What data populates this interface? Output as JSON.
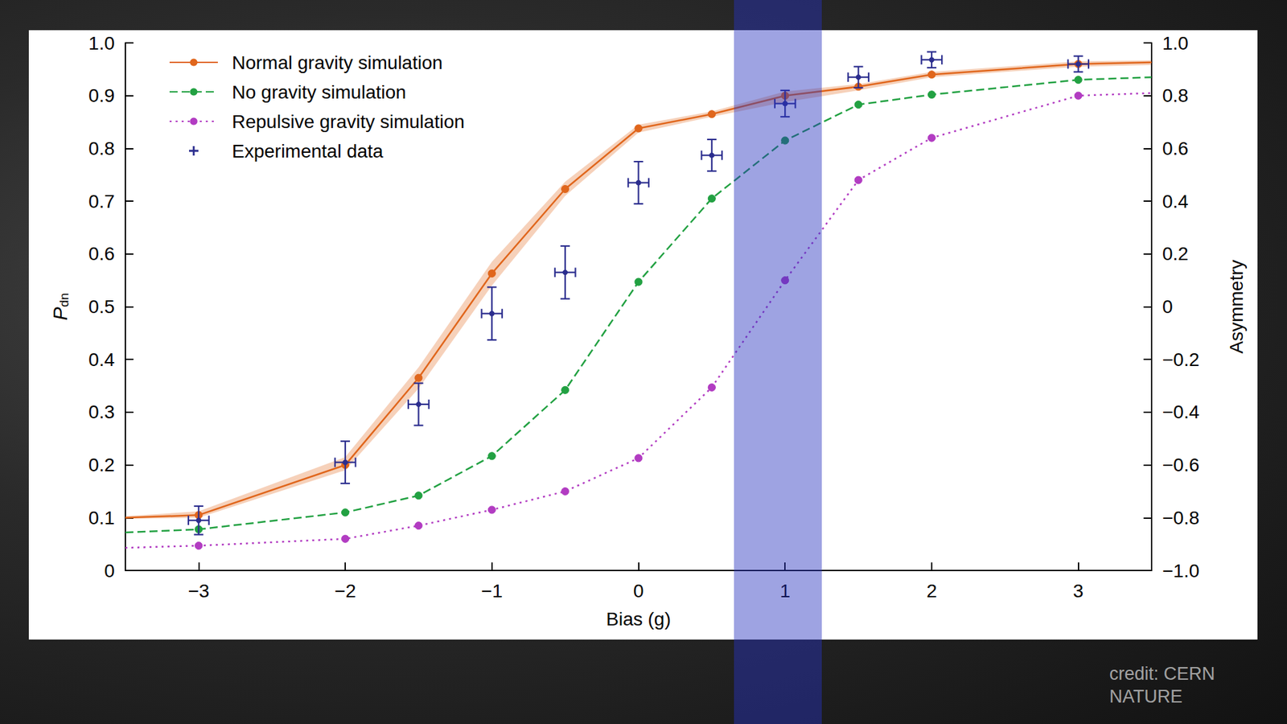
{
  "chart_data": {
    "type": "line",
    "xlabel": "Bias (g)",
    "ylabel": "P",
    "ylabel_subscript": "dn",
    "y2label": "Asymmetry",
    "xlim": [
      -3.5,
      3.5
    ],
    "xticks": [
      {
        "value": -3,
        "label": "−3"
      },
      {
        "value": -2,
        "label": "−2"
      },
      {
        "value": -1,
        "label": "−1"
      },
      0,
      1,
      2,
      3
    ],
    "ylim": [
      0,
      1
    ],
    "yticks": [
      0,
      0.1,
      0.2,
      0.3,
      0.4,
      0.5,
      0.6,
      0.7,
      0.8,
      0.9,
      {
        "value": 1,
        "label": "1.0"
      }
    ],
    "y2lim": [
      -1,
      1
    ],
    "y2ticks": [
      {
        "value": -1,
        "label": "−1.0"
      },
      {
        "value": -0.8,
        "label": "−0.8"
      },
      {
        "value": -0.6,
        "label": "−0.6"
      },
      {
        "value": -0.4,
        "label": "−0.4"
      },
      {
        "value": -0.2,
        "label": "−0.2"
      },
      0,
      0.2,
      0.4,
      0.6,
      0.8,
      {
        "value": 1,
        "label": "1.0"
      }
    ],
    "grid": false,
    "legend": "top-left",
    "highlight_x": [
      0.65,
      1.25
    ],
    "credit": [
      "credit: CERN",
      "NATURE"
    ],
    "series": [
      {
        "name": "Normal gravity simulation",
        "type": "line",
        "color": "#e0661c",
        "marker": "circle",
        "line_style": "solid",
        "x": [
          -3.5,
          -3,
          -2,
          -1.5,
          -1,
          -0.5,
          0,
          0.5,
          1,
          1.5,
          2,
          3,
          3.5
        ],
        "values": [
          0.1,
          0.105,
          0.2,
          0.365,
          0.563,
          0.723,
          0.838,
          0.865,
          0.9,
          0.917,
          0.94,
          0.96,
          0.963
        ],
        "band_low": [
          0.098,
          0.1,
          0.19,
          0.345,
          0.54,
          0.71,
          0.83,
          0.86,
          0.888,
          0.91,
          0.935,
          0.955,
          0.958
        ],
        "band_high": [
          0.103,
          0.112,
          0.215,
          0.385,
          0.585,
          0.737,
          0.845,
          0.87,
          0.908,
          0.922,
          0.945,
          0.965,
          0.967
        ]
      },
      {
        "name": "No gravity simulation",
        "type": "line",
        "color": "#22a142",
        "marker": "circle",
        "line_style": "dashed",
        "x": [
          -3.5,
          -3,
          -2,
          -1.5,
          -1,
          -0.5,
          0,
          0.5,
          1,
          1.5,
          2,
          3,
          3.5
        ],
        "values": [
          0.072,
          0.078,
          0.11,
          0.142,
          0.217,
          0.342,
          0.547,
          0.705,
          0.815,
          0.883,
          0.902,
          0.93,
          0.935
        ]
      },
      {
        "name": "Repulsive gravity simulation",
        "type": "line",
        "color": "#b23cc2",
        "marker": "circle",
        "line_style": "dotted",
        "x": [
          -3.5,
          -3,
          -2,
          -1.5,
          -1,
          -0.5,
          0,
          0.5,
          1,
          1.5,
          2,
          3,
          3.5
        ],
        "values": [
          0.043,
          0.047,
          0.06,
          0.085,
          0.115,
          0.15,
          0.213,
          0.347,
          0.55,
          0.74,
          0.82,
          0.9,
          0.905
        ]
      },
      {
        "name": "Experimental data",
        "type": "scatter",
        "color": "#2b2d8e",
        "marker": "errorbar",
        "x": [
          -3,
          -2,
          -1.5,
          -1,
          -0.5,
          0,
          0.5,
          1,
          1.5,
          2,
          3
        ],
        "values": [
          0.095,
          0.205,
          0.315,
          0.487,
          0.565,
          0.735,
          0.787,
          0.885,
          0.935,
          0.968,
          0.96
        ],
        "x_error": [
          0.07,
          0.07,
          0.07,
          0.07,
          0.07,
          0.07,
          0.07,
          0.07,
          0.07,
          0.07,
          0.07
        ],
        "y_error": [
          0.027,
          0.04,
          0.04,
          0.05,
          0.05,
          0.04,
          0.03,
          0.025,
          0.02,
          0.015,
          0.015
        ]
      }
    ]
  }
}
